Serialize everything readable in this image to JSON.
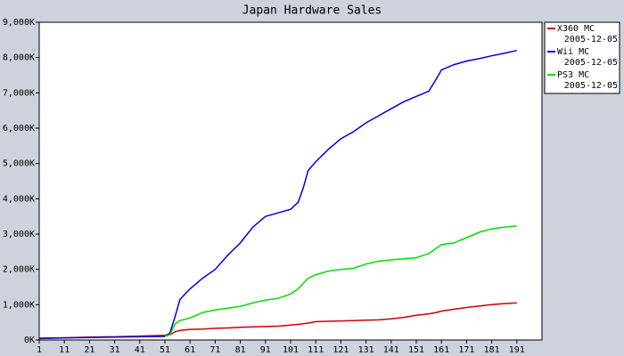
{
  "chart_data": {
    "type": "line",
    "title": "Japan Hardware Sales",
    "x": [
      1,
      11,
      21,
      31,
      41,
      51,
      53,
      55,
      57,
      61,
      66,
      71,
      76,
      81,
      86,
      91,
      96,
      101,
      104,
      106,
      108,
      111,
      116,
      121,
      126,
      131,
      136,
      141,
      146,
      151,
      156,
      159,
      161,
      166,
      171,
      176,
      181,
      186,
      191
    ],
    "series": [
      {
        "name": "X360 MC",
        "date": "2005-12-05",
        "color": "#cc0000",
        "values": [
          40,
          60,
          80,
          90,
          110,
          130,
          150,
          230,
          270,
          300,
          310,
          330,
          340,
          360,
          370,
          380,
          390,
          420,
          440,
          460,
          480,
          520,
          530,
          540,
          550,
          560,
          570,
          600,
          640,
          700,
          740,
          780,
          820,
          870,
          920,
          960,
          1000,
          1030,
          1050
        ]
      },
      {
        "name": "Wii MC",
        "date": "2005-12-05",
        "color": "#0000dd",
        "values": [
          50,
          60,
          70,
          80,
          90,
          100,
          200,
          650,
          1150,
          1450,
          1750,
          2000,
          2400,
          2750,
          3200,
          3500,
          3600,
          3700,
          3900,
          4300,
          4800,
          5050,
          5400,
          5700,
          5900,
          6150,
          6350,
          6550,
          6750,
          6900,
          7050,
          7400,
          7650,
          7800,
          7900,
          7970,
          8050,
          8120,
          8200
        ]
      },
      {
        "name": "PS3 MC",
        "date": "2005-12-05",
        "color": "#00dd00",
        "values": [
          null,
          null,
          null,
          null,
          null,
          100,
          150,
          450,
          550,
          620,
          780,
          850,
          900,
          950,
          1050,
          1130,
          1180,
          1300,
          1450,
          1600,
          1750,
          1850,
          1950,
          2000,
          2030,
          2150,
          2230,
          2270,
          2300,
          2330,
          2450,
          2600,
          2700,
          2750,
          2900,
          3050,
          3150,
          3200,
          3230
        ]
      }
    ],
    "xlim": [
      1,
      201
    ],
    "xticks": [
      1,
      11,
      21,
      31,
      41,
      51,
      61,
      71,
      81,
      91,
      101,
      111,
      121,
      131,
      141,
      151,
      161,
      171,
      181,
      191
    ],
    "ylim": [
      0,
      9000
    ],
    "yticks": [
      {
        "value": 0,
        "label": "0K"
      },
      {
        "value": 1000,
        "label": "1,000K"
      },
      {
        "value": 2000,
        "label": "2,000K"
      },
      {
        "value": 3000,
        "label": "3,000K"
      },
      {
        "value": 4000,
        "label": "4,000K"
      },
      {
        "value": 5000,
        "label": "5,000K"
      },
      {
        "value": 6000,
        "label": "6,000K"
      },
      {
        "value": 7000,
        "label": "7,000K"
      },
      {
        "value": 8000,
        "label": "8,000K"
      },
      {
        "value": 9000,
        "label": "9,000K"
      }
    ],
    "legend": "right"
  }
}
